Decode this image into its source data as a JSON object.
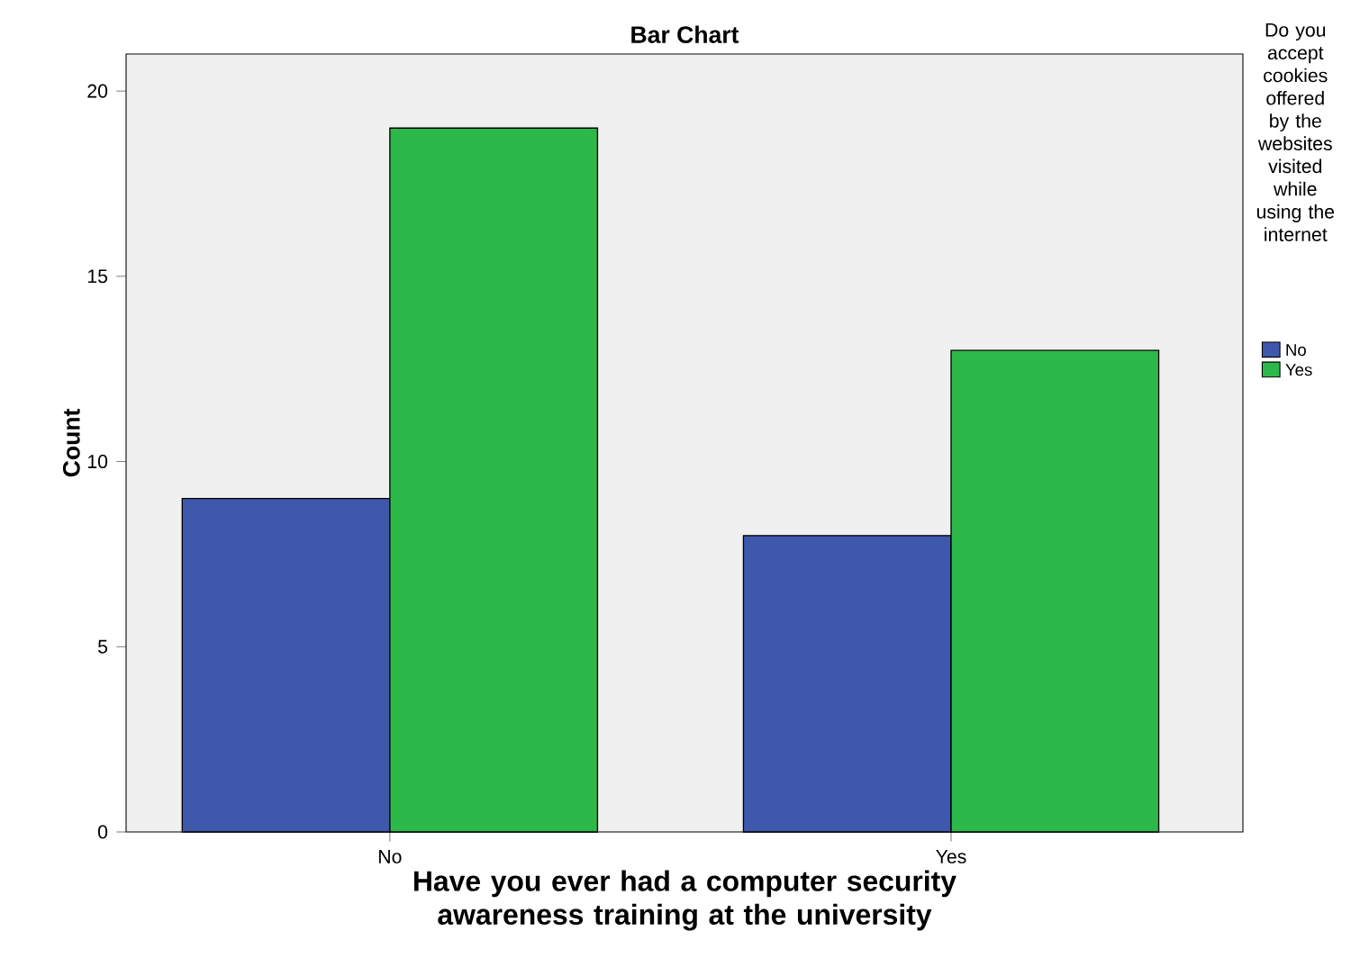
{
  "chart_data": {
    "type": "bar",
    "title": "Bar Chart",
    "xlabel": "Have you ever had a computer security awareness training at the university",
    "ylabel": "Count",
    "legend_title": "Do you accept cookies offered by the websites visited while using the internet",
    "categories": [
      "No",
      "Yes"
    ],
    "series": [
      {
        "name": "No",
        "color": "#3e58ac",
        "values": [
          9,
          8
        ]
      },
      {
        "name": "Yes",
        "color": "#2db84a",
        "values": [
          19,
          13
        ]
      }
    ],
    "ylim": [
      0,
      21
    ],
    "yticks": [
      0,
      5,
      10,
      15,
      20
    ],
    "grid": false,
    "legend": "right"
  }
}
